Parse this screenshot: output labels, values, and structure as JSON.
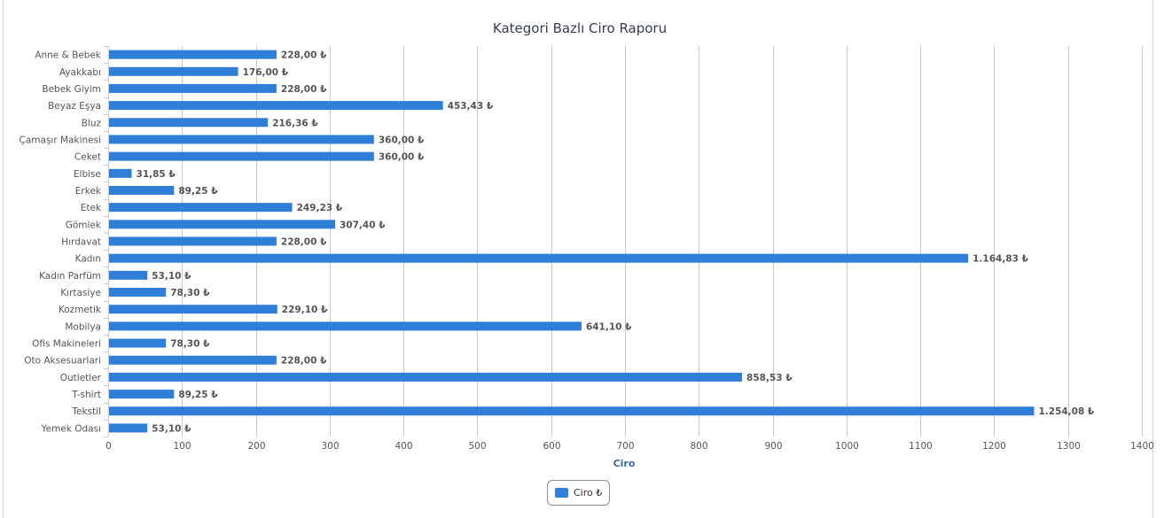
{
  "chart_data": {
    "type": "bar",
    "orientation": "horizontal",
    "title": "Kategori Bazlı Ciro Raporu",
    "xlabel": "Ciro",
    "ylabel": "",
    "xlim": [
      0,
      1400
    ],
    "x_ticks": [
      0,
      100,
      200,
      300,
      400,
      500,
      600,
      700,
      800,
      900,
      1000,
      1100,
      1200,
      1300,
      1400
    ],
    "x_tick_labels": [
      "0",
      "100",
      "200",
      "300",
      "400",
      "500",
      "600",
      "700",
      "800",
      "900",
      "1000",
      "1100",
      "1200",
      "1300",
      "1400"
    ],
    "grid": true,
    "legend_position": "bottom-center",
    "categories": [
      "Anne & Bebek",
      "Ayakkabı",
      "Bebek Giyim",
      "Beyaz Eşya",
      "Bluz",
      "Çamaşır Makinesi",
      "Ceket",
      "Elbise",
      "Erkek",
      "Etek",
      "Gömlek",
      "Hırdavat",
      "Kadın",
      "Kadın Parfüm",
      "Kırtasiye",
      "Kozmetik",
      "Mobilya",
      "Ofis Makineleri",
      "Oto Aksesuarlari",
      "Outletler",
      "T-shirt",
      "Tekstil",
      "Yemek Odası"
    ],
    "series": [
      {
        "name": "Ciro ₺",
        "color": "#2f7ed8",
        "values": [
          228.0,
          176.0,
          228.0,
          453.43,
          216.36,
          360.0,
          360.0,
          31.85,
          89.25,
          249.23,
          307.4,
          228.0,
          1164.83,
          53.1,
          78.3,
          229.1,
          641.1,
          78.3,
          228.0,
          858.53,
          89.25,
          1254.08,
          53.1
        ],
        "value_labels": [
          "228,00 ₺",
          "176,00 ₺",
          "228,00 ₺",
          "453,43 ₺",
          "216,36 ₺",
          "360,00 ₺",
          "360,00 ₺",
          "31,85 ₺",
          "89,25 ₺",
          "249,23 ₺",
          "307,40 ₺",
          "228,00 ₺",
          "1.164,83 ₺",
          "53,10 ₺",
          "78,30 ₺",
          "229,10 ₺",
          "641,10 ₺",
          "78,30 ₺",
          "228,00 ₺",
          "858,53 ₺",
          "89,25 ₺",
          "1.254,08 ₺",
          "53,10 ₺"
        ]
      }
    ]
  },
  "colors": {
    "bar": "#2f7ed8",
    "grid": "#c8c8c8",
    "axis": "#c0d0e0"
  }
}
